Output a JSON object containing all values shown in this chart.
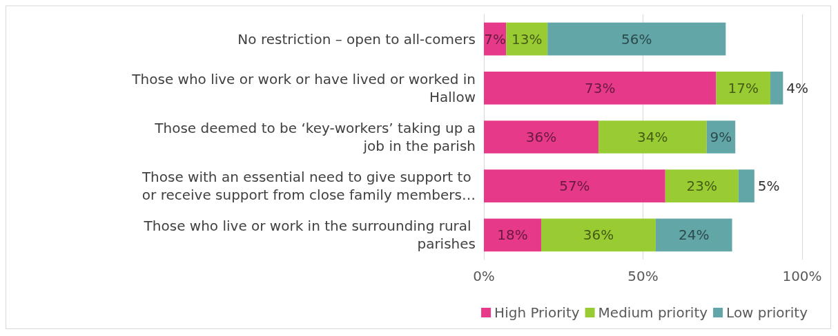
{
  "chart_data": {
    "type": "bar",
    "orientation": "horizontal",
    "stacked": true,
    "categories": [
      "No restriction – open to all-comers",
      "Those who live or work or have lived or worked in Hallow",
      "Those deemed to be ‘key-workers’ taking up a job in the parish",
      "Those with an essential need to give support to or receive support from close family members…",
      "Those who live or work in the surrounding rural parishes"
    ],
    "series": [
      {
        "name": "High Priority",
        "color": "#e6398a",
        "values": [
          7,
          73,
          36,
          57,
          18
        ],
        "value_labels": [
          "7%",
          "73%",
          "36%",
          "57%",
          "18%"
        ]
      },
      {
        "name": "Medium priority",
        "color": "#99cc33",
        "values": [
          13,
          17,
          34,
          23,
          36
        ],
        "value_labels": [
          "13%",
          "17%",
          "34%",
          "23%",
          "36%"
        ]
      },
      {
        "name": "Low priority",
        "color": "#62a6a8",
        "values": [
          56,
          4,
          9,
          5,
          24
        ],
        "value_labels": [
          "56%",
          "4%",
          "9%",
          "5%",
          "24%"
        ]
      }
    ],
    "xlim": [
      0,
      100
    ],
    "xticks": [
      {
        "value": 0,
        "label": "0%"
      },
      {
        "value": 50,
        "label": "50%"
      },
      {
        "value": 100,
        "label": "100%"
      }
    ],
    "grid": "x",
    "legend": "bottom"
  }
}
